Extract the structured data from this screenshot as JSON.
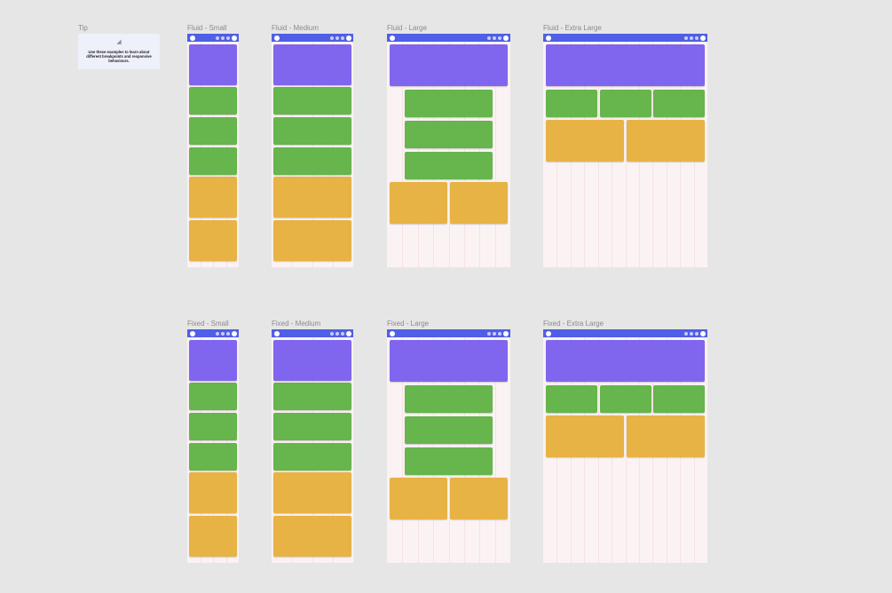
{
  "tip": {
    "label": "Tip",
    "icon": "ruler-triangle-icon",
    "text": "Use these examples to learn about different breakpoints and responsive behaviours."
  },
  "colors": {
    "nav": "#4f5fe6",
    "hero": "#8066ef",
    "card": "#66b54d",
    "feature": "#e8b345",
    "frame": "#fbf3f3"
  },
  "frames": [
    {
      "id": "fluid-small",
      "label": "Fluid - Small",
      "layout": "stacked-small"
    },
    {
      "id": "fluid-medium",
      "label": "Fluid - Medium",
      "layout": "stacked-medium"
    },
    {
      "id": "fluid-large",
      "label": "Fluid - Large",
      "layout": "large"
    },
    {
      "id": "fluid-extra-large",
      "label": "Fluid - Extra Large",
      "layout": "extra-large"
    },
    {
      "id": "fixed-small",
      "label": "Fixed - Small",
      "layout": "stacked-small"
    },
    {
      "id": "fixed-medium",
      "label": "Fixed - Medium",
      "layout": "stacked-medium"
    },
    {
      "id": "fixed-large",
      "label": "Fixed - Large",
      "layout": "large"
    },
    {
      "id": "fixed-extra-large",
      "label": "Fixed - Extra Large",
      "layout": "extra-large"
    }
  ]
}
